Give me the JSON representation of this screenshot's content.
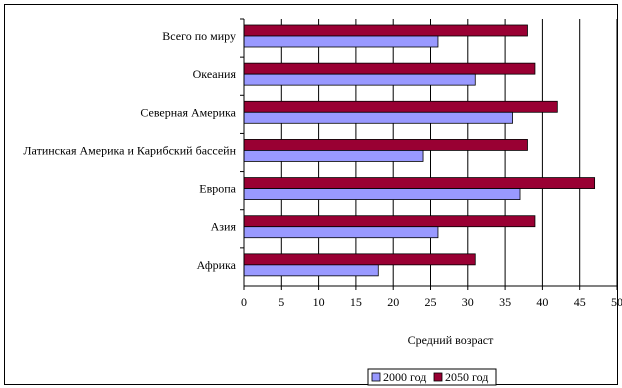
{
  "chart_data": {
    "type": "bar",
    "orientation": "horizontal",
    "categories": [
      "Всего по миру",
      "Океания",
      "Северная Америка",
      "Латинская Америка и Карибский бассейн",
      "Европа",
      "Азия",
      "Африка"
    ],
    "series": [
      {
        "name": "2050 год",
        "color": "#990033",
        "values": [
          38,
          39,
          42,
          38,
          47,
          39,
          31
        ]
      },
      {
        "name": "2000 год",
        "color": "#9999ff",
        "values": [
          26,
          31,
          36,
          24,
          37,
          26,
          18
        ]
      }
    ],
    "x_ticks": [
      0,
      5,
      10,
      15,
      20,
      25,
      30,
      35,
      40,
      45,
      50
    ],
    "xlim": [
      0,
      50
    ],
    "xlabel": "Средний возраст",
    "ylabel": "",
    "title": "",
    "grid": "vertical",
    "legend_position": "bottom-center",
    "legend_order": [
      "2000 год",
      "2050 год"
    ]
  }
}
